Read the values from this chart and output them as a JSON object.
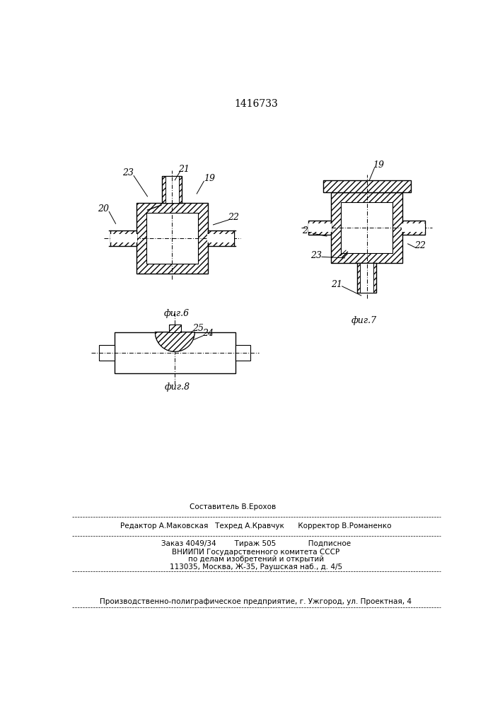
{
  "title": "1416733",
  "title_fontsize": 10,
  "bg_color": "#ffffff",
  "line_color": "#000000",
  "fig6_label": "фиг.6",
  "fig7_label": "фиг.7",
  "fig8_label": "фиг.8",
  "footer_lines": [
    "Составитель В.Ерохов",
    "Редактор А.Маковская   Техред А.Кравчук      Корректор В.Романенко",
    "Заказ 4049/34        Тираж 505              Подписное",
    "ВНИИПИ Государственного комитета СССР",
    "по делам изобретений и открытий",
    "113035, Москва, Ж-35, Раушская наб., д. 4/5",
    "Производственно-полиграфическое предприятие, г. Ужгород, ул. Проектная, 4"
  ]
}
